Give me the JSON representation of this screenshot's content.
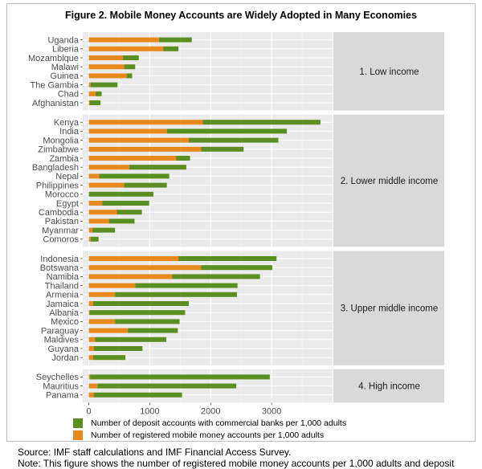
{
  "figure": {
    "title": "Figure 2. Mobile Money Accounts are Widely Adopted in Many Economies",
    "source": "Source: IMF staff calculations and IMF Financial Access Survey.",
    "note": "Note: This figure shows the number of registered mobile money accounts per 1,000 adults and deposit"
  },
  "colors": {
    "deposit": "#5b8f22",
    "mobile": "#e8891e",
    "panel_bg": "#ebebeb",
    "strip_bg": "#d9d9d9"
  },
  "chart_data": {
    "type": "bar",
    "orientation": "horizontal",
    "stacked": true,
    "xlim": [
      -100,
      4000
    ],
    "xticks": [
      0,
      1000,
      2000,
      3000
    ],
    "xlabel": "",
    "ylabel": "",
    "grid": true,
    "legend_position": "bottom",
    "series": [
      {
        "name": "Number of deposit accounts with commercial banks per 1,000 adults"
      },
      {
        "name": "Number of registered mobile money accounts per 1,000 adults"
      }
    ],
    "panels": [
      {
        "label": "1. Low income",
        "countries": [
          {
            "name": "Uganda",
            "mobile": 1150,
            "total": 1690
          },
          {
            "name": "Liberia",
            "mobile": 1220,
            "total": 1470
          },
          {
            "name": "Mozambique",
            "mobile": 560,
            "total": 820
          },
          {
            "name": "Malawi",
            "mobile": 580,
            "total": 760
          },
          {
            "name": "Guinea",
            "mobile": 620,
            "total": 710
          },
          {
            "name": "The Gambia",
            "mobile": 30,
            "total": 470
          },
          {
            "name": "Chad",
            "mobile": 110,
            "total": 210
          },
          {
            "name": "Afghanistan",
            "mobile": 10,
            "total": 190
          }
        ]
      },
      {
        "label": "2. Lower middle income",
        "countries": [
          {
            "name": "Kenya",
            "mobile": 1870,
            "total": 3800
          },
          {
            "name": "India",
            "mobile": 1280,
            "total": 3250
          },
          {
            "name": "Mongolia",
            "mobile": 1640,
            "total": 3110
          },
          {
            "name": "Zimbabwe",
            "mobile": 1840,
            "total": 2540
          },
          {
            "name": "Zambia",
            "mobile": 1430,
            "total": 1660
          },
          {
            "name": "Bangladesh",
            "mobile": 660,
            "total": 1600
          },
          {
            "name": "Nepal",
            "mobile": 170,
            "total": 1320
          },
          {
            "name": "Philippines",
            "mobile": 580,
            "total": 1280
          },
          {
            "name": "Morocco",
            "mobile": 0,
            "total": 1060
          },
          {
            "name": "Egypt",
            "mobile": 220,
            "total": 990
          },
          {
            "name": "Cambodia",
            "mobile": 460,
            "total": 870
          },
          {
            "name": "Pakistan",
            "mobile": 330,
            "total": 750
          },
          {
            "name": "Myanmar",
            "mobile": 60,
            "total": 430
          },
          {
            "name": "Comoros",
            "mobile": 30,
            "total": 160
          }
        ]
      },
      {
        "label": "3. Upper middle income",
        "countries": [
          {
            "name": "Indonesia",
            "mobile": 1470,
            "total": 3080
          },
          {
            "name": "Botswana",
            "mobile": 1840,
            "total": 3010
          },
          {
            "name": "Namibia",
            "mobile": 1370,
            "total": 2810
          },
          {
            "name": "Thailand",
            "mobile": 760,
            "total": 2440
          },
          {
            "name": "Armenia",
            "mobile": 430,
            "total": 2430
          },
          {
            "name": "Jamaica",
            "mobile": 70,
            "total": 1640
          },
          {
            "name": "Albania",
            "mobile": 10,
            "total": 1580
          },
          {
            "name": "Mexico",
            "mobile": 430,
            "total": 1490
          },
          {
            "name": "Paraguay",
            "mobile": 640,
            "total": 1460
          },
          {
            "name": "Maldives",
            "mobile": 100,
            "total": 1270
          },
          {
            "name": "Guyana",
            "mobile": 80,
            "total": 880
          },
          {
            "name": "Jordan",
            "mobile": 70,
            "total": 600
          }
        ]
      },
      {
        "label": "4. High income",
        "countries": [
          {
            "name": "Seychelles",
            "mobile": 20,
            "total": 2970
          },
          {
            "name": "Mauritius",
            "mobile": 140,
            "total": 2420
          },
          {
            "name": "Panama",
            "mobile": 80,
            "total": 1530
          }
        ]
      }
    ]
  }
}
